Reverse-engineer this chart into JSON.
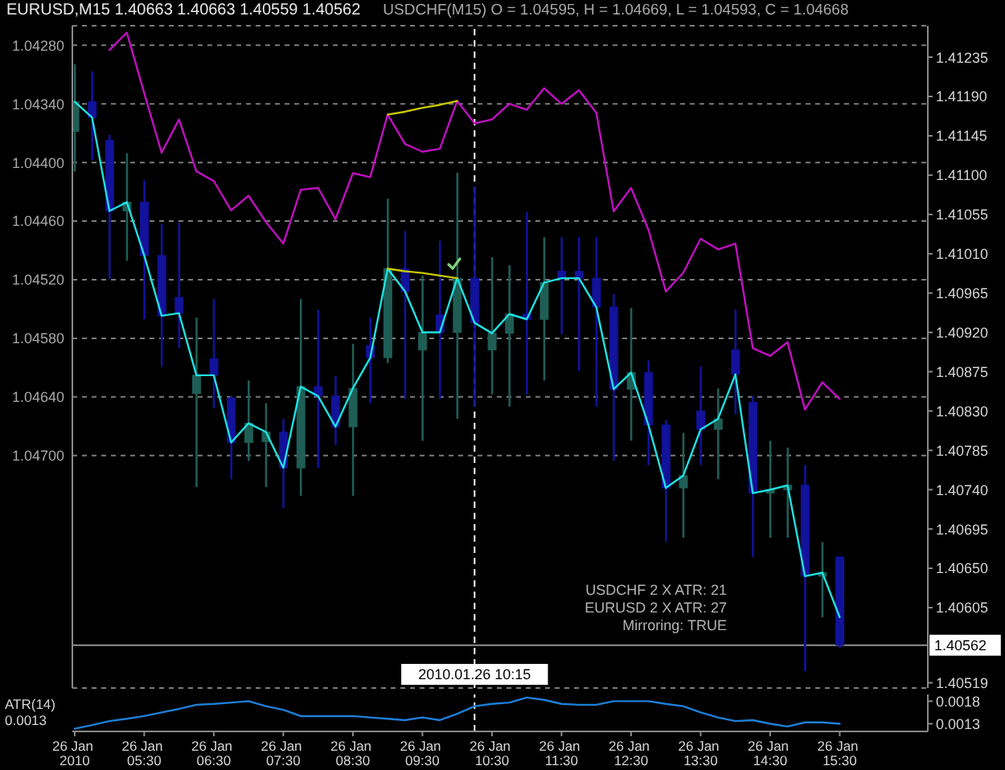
{
  "chart_data": [
    {
      "type": "candlestick",
      "title": "EURUSD,M15 1.40663 1.40663 1.40559 1.40562",
      "subtitle": "USDCHF(M15) O = 1.04595, H = 1.04669, L = 1.04593, C = 1.04668",
      "x": [
        "2010-01-26T04:30",
        "2010-01-26T04:45",
        "2010-01-26T05:00",
        "2010-01-26T05:15",
        "2010-01-26T05:30",
        "2010-01-26T05:45",
        "2010-01-26T06:00",
        "2010-01-26T06:15",
        "2010-01-26T06:30",
        "2010-01-26T06:45",
        "2010-01-26T07:00",
        "2010-01-26T07:15",
        "2010-01-26T07:30",
        "2010-01-26T07:45",
        "2010-01-26T08:00",
        "2010-01-26T08:15",
        "2010-01-26T08:30",
        "2010-01-26T08:45",
        "2010-01-26T09:00",
        "2010-01-26T09:15",
        "2010-01-26T09:30",
        "2010-01-26T09:45",
        "2010-01-26T10:00",
        "2010-01-26T10:15",
        "2010-01-26T10:30",
        "2010-01-26T10:45",
        "2010-01-26T11:00",
        "2010-01-26T11:15",
        "2010-01-26T11:30",
        "2010-01-26T11:45",
        "2010-01-26T12:00",
        "2010-01-26T12:15",
        "2010-01-26T12:30",
        "2010-01-26T12:45",
        "2010-01-26T13:00",
        "2010-01-26T13:15",
        "2010-01-26T13:30",
        "2010-01-26T13:45",
        "2010-01-26T14:00",
        "2010-01-26T14:15",
        "2010-01-26T14:30",
        "2010-01-26T14:45",
        "2010-01-26T15:00",
        "2010-01-26T15:15",
        "2010-01-26T15:30"
      ],
      "series": [
        {
          "type": "line",
          "axis": "y2",
          "color": "#20e0e0",
          "values": [
            1.41184,
            1.41166,
            1.41059,
            1.41069,
            1.41008,
            1.40939,
            1.40942,
            1.40871,
            1.40871,
            1.40794,
            1.40816,
            1.40806,
            1.40765,
            1.40858,
            1.40847,
            1.40812,
            1.40856,
            1.40891,
            1.40993,
            1.40967,
            1.4092,
            1.4092,
            1.40982,
            1.40931,
            1.40919,
            1.40941,
            1.40935,
            1.40977,
            1.40982,
            1.40982,
            1.40949,
            1.40855,
            1.40874,
            1.40814,
            1.40742,
            1.40756,
            1.40809,
            1.40821,
            1.40872,
            1.40736,
            1.4074,
            1.40745,
            1.40641,
            1.40645,
            1.40594
          ]
        },
        {
          "type": "line",
          "color": "#c010c0",
          "values": [
            null,
            null,
            1.04285,
            1.04267,
            1.04329,
            1.0439,
            1.04356,
            1.04409,
            1.04419,
            1.04449,
            1.04434,
            1.04461,
            1.04483,
            1.04428,
            1.04426,
            1.04458,
            1.04411,
            1.04415,
            1.04351,
            1.04381,
            1.04389,
            1.04386,
            1.04337,
            1.0436,
            1.04356,
            1.0434,
            1.04346,
            1.04324,
            1.0434,
            1.04326,
            1.04349,
            1.0445,
            1.04426,
            1.04469,
            1.04532,
            1.04513,
            1.04478,
            1.04489,
            1.04483,
            1.0459,
            1.04598,
            1.04584,
            1.04653,
            1.04625,
            1.04642
          ]
        },
        {
          "type": "line",
          "color": "#c8c800",
          "values": [
            null,
            null,
            null,
            null,
            null,
            null,
            null,
            null,
            null,
            null,
            null,
            null,
            null,
            null,
            null,
            null,
            null,
            null,
            1.04351,
            1.04348,
            1.04344,
            1.04341,
            1.04337,
            null,
            null,
            null,
            null,
            null,
            null,
            null,
            null,
            null,
            null,
            null,
            null,
            null,
            null,
            null,
            null,
            null,
            null,
            null,
            null,
            null,
            null
          ]
        },
        {
          "type": "line",
          "axis": "y2",
          "color": "#c8c800",
          "values": [
            null,
            null,
            null,
            null,
            null,
            null,
            null,
            null,
            null,
            null,
            null,
            null,
            null,
            null,
            null,
            null,
            null,
            null,
            1.40993,
            1.4099,
            1.40988,
            1.40985,
            1.40982,
            null,
            null,
            null,
            null,
            null,
            null,
            null,
            null,
            null,
            null,
            null,
            null,
            null,
            null,
            null,
            null,
            null,
            null,
            null,
            null,
            null,
            null
          ]
        },
        {
          "axis": "y2",
          "ohlc": [
            [
              1.4115,
              1.41227,
              1.41104,
              1.41184
            ],
            [
              1.41184,
              1.41219,
              1.41117,
              1.41166
            ],
            [
              1.4114,
              1.41146,
              1.40981,
              1.41059
            ],
            [
              1.41059,
              1.41125,
              1.41002,
              1.41069
            ],
            [
              1.41069,
              1.41094,
              1.40935,
              1.41008
            ],
            [
              1.41008,
              1.41044,
              1.40881,
              1.40939
            ],
            [
              1.4096,
              1.41046,
              1.40902,
              1.40942
            ],
            [
              1.4085,
              1.40937,
              1.40743,
              1.40871
            ],
            [
              1.4089,
              1.40958,
              1.40833,
              1.40871
            ],
            [
              1.40845,
              1.40847,
              1.40752,
              1.40794
            ],
            [
              1.40794,
              1.40865,
              1.40773,
              1.40816
            ],
            [
              1.40795,
              1.40839,
              1.40743,
              1.40806
            ],
            [
              1.40806,
              1.40821,
              1.40719,
              1.40765
            ],
            [
              1.40765,
              1.40958,
              1.40733,
              1.40858
            ],
            [
              1.40858,
              1.40946,
              1.40765,
              1.40847
            ],
            [
              1.40847,
              1.4087,
              1.40791,
              1.40812
            ],
            [
              1.40812,
              1.40907,
              1.40733,
              1.40856
            ],
            [
              1.40905,
              1.40937,
              1.40839,
              1.40891
            ],
            [
              1.40891,
              1.41073,
              1.40885,
              1.40993
            ],
            [
              1.40993,
              1.41036,
              1.40844,
              1.40967
            ],
            [
              1.409,
              1.40985,
              1.40796,
              1.4092
            ],
            [
              1.4094,
              1.41025,
              1.40844,
              1.4092
            ],
            [
              1.4092,
              1.41103,
              1.40821,
              1.40982
            ],
            [
              1.40982,
              1.41087,
              1.40835,
              1.40931
            ],
            [
              1.409,
              1.41006,
              1.40849,
              1.40919
            ],
            [
              1.40919,
              1.40997,
              1.40835,
              1.40941
            ],
            [
              1.40941,
              1.41058,
              1.40849,
              1.40935
            ],
            [
              1.40935,
              1.41029,
              1.40865,
              1.40977
            ],
            [
              1.4099,
              1.41029,
              1.40918,
              1.40982
            ],
            [
              1.4099,
              1.41029,
              1.40876,
              1.40982
            ],
            [
              1.40982,
              1.41029,
              1.40835,
              1.40949
            ],
            [
              1.40949,
              1.40964,
              1.40773,
              1.40855
            ],
            [
              1.40855,
              1.40948,
              1.40796,
              1.40874
            ],
            [
              1.40874,
              1.40888,
              1.40768,
              1.40814
            ],
            [
              1.40814,
              1.4082,
              1.4068,
              1.40742
            ],
            [
              1.40742,
              1.40805,
              1.40685,
              1.40756
            ],
            [
              1.4083,
              1.40881,
              1.40768,
              1.40809
            ],
            [
              1.40809,
              1.40856,
              1.40752,
              1.40821
            ],
            [
              1.409,
              1.40946,
              1.40826,
              1.40872
            ],
            [
              1.4084,
              1.40847,
              1.40663,
              1.40736
            ],
            [
              1.40736,
              1.40796,
              1.40685,
              1.4074
            ],
            [
              1.4074,
              1.40788,
              1.40685,
              1.40745
            ],
            [
              1.40745,
              1.40768,
              1.40532,
              1.40641
            ],
            [
              1.40641,
              1.4068,
              1.40594,
              1.40645
            ],
            [
              1.40663,
              1.40663,
              1.40559,
              1.40562
            ]
          ],
          "colors": [
            "#1f5e55",
            "#12129a",
            "#12129a",
            "#1f5e55",
            "#12129a",
            "#12129a",
            "#12129a",
            "#1f5e55",
            "#12129a",
            "#12129a",
            "#1f5e55",
            "#1f5e55",
            "#12129a",
            "#1f5e55",
            "#12129a",
            "#12129a",
            "#1f5e55",
            "#12129a",
            "#1f5e55",
            "#12129a",
            "#1f5e55",
            "#12129a",
            "#1f5e55",
            "#12129a",
            "#1f5e55",
            "#1f5e55",
            "#12129a",
            "#1f5e55",
            "#12129a",
            "#12129a",
            "#12129a",
            "#12129a",
            "#1f5e55",
            "#12129a",
            "#12129a",
            "#1f5e55",
            "#12129a",
            "#1f5e55",
            "#12129a",
            "#12129a",
            "#1f5e55",
            "#1f5e55",
            "#12129a",
            "#1f5e55",
            "#12129a"
          ]
        }
      ],
      "xlim": [
        "2010-01-26T04:28",
        "2010-01-26T16:46"
      ],
      "ylim": [
        1.04938,
        1.0426
      ],
      "yticks": [
        {
          "value": 1.0428,
          "label": "1.04280"
        },
        {
          "value": 1.0434,
          "label": "1.04340"
        },
        {
          "value": 1.044,
          "label": "1.04400"
        },
        {
          "value": 1.0446,
          "label": "1.04460"
        },
        {
          "value": 1.0452,
          "label": "1.04520"
        },
        {
          "value": 1.0458,
          "label": "1.04580"
        },
        {
          "value": 1.0464,
          "label": "1.04640"
        },
        {
          "value": 1.047,
          "label": "1.04700"
        }
      ],
      "y2lim": [
        1.40513,
        1.41271
      ],
      "y2ticks": [
        1.41235,
        {
          "value": 1.4119,
          "label": "1.41190"
        },
        1.41145,
        {
          "value": 1.411,
          "label": "1.41100"
        },
        1.41055,
        {
          "value": 1.4101,
          "label": "1.41010"
        },
        1.40965,
        {
          "value": 1.4092,
          "label": "1.40920"
        },
        1.40875,
        {
          "value": 1.4083,
          "label": "1.40830"
        },
        1.40785,
        {
          "value": 1.4074,
          "label": "1.40740"
        },
        1.40695,
        {
          "value": 1.4065,
          "label": "1.40650"
        },
        1.40605,
        1.40519
      ],
      "ref_lines": [
        {
          "axis": "x",
          "value": "2010-01-26T10:15",
          "label": "2010.01.26 10:15",
          "color": "#ffffff",
          "line_style": "dashed"
        },
        {
          "axis": "y2",
          "value": 1.40562,
          "label": "1.40562",
          "color": "#909090"
        }
      ],
      "annotations": [
        "USDCHF 2 X ATR: 21",
        "EURUSD 2 X ATR: 27",
        "Mirroring: TRUE"
      ],
      "grid": "y",
      "tick_labels": "y"
    },
    {
      "type": "line",
      "title": "ATR(14) 0.0013",
      "x": [
        "2010-01-26T04:30",
        "2010-01-26T04:45",
        "2010-01-26T05:00",
        "2010-01-26T05:15",
        "2010-01-26T05:30",
        "2010-01-26T05:45",
        "2010-01-26T06:00",
        "2010-01-26T06:15",
        "2010-01-26T06:30",
        "2010-01-26T06:45",
        "2010-01-26T07:00",
        "2010-01-26T07:15",
        "2010-01-26T07:30",
        "2010-01-26T07:45",
        "2010-01-26T08:00",
        "2010-01-26T08:15",
        "2010-01-26T08:30",
        "2010-01-26T08:45",
        "2010-01-26T09:00",
        "2010-01-26T09:15",
        "2010-01-26T09:30",
        "2010-01-26T09:45",
        "2010-01-26T10:00",
        "2010-01-26T10:15",
        "2010-01-26T10:30",
        "2010-01-26T10:45",
        "2010-01-26T11:00",
        "2010-01-26T11:15",
        "2010-01-26T11:30",
        "2010-01-26T11:45",
        "2010-01-26T12:00",
        "2010-01-26T12:15",
        "2010-01-26T12:30",
        "2010-01-26T12:45",
        "2010-01-26T13:00",
        "2010-01-26T13:15",
        "2010-01-26T13:30",
        "2010-01-26T13:45",
        "2010-01-26T14:00",
        "2010-01-26T14:15",
        "2010-01-26T14:30",
        "2010-01-26T14:45",
        "2010-01-26T15:00",
        "2010-01-26T15:15",
        "2010-01-26T15:30"
      ],
      "series": [
        {
          "color": "#1e7fd8",
          "values": [
            0.00119,
            0.00127,
            0.00136,
            0.00141,
            0.00147,
            0.00155,
            0.00163,
            0.00172,
            0.00174,
            0.00177,
            0.0018,
            0.00169,
            0.00161,
            0.00147,
            0.00147,
            0.00147,
            0.00147,
            0.00144,
            0.00141,
            0.00138,
            0.00144,
            0.00138,
            0.00152,
            0.00169,
            0.00174,
            0.00177,
            0.00188,
            0.00183,
            0.00174,
            0.00172,
            0.00172,
            0.0018,
            0.0018,
            0.0018,
            0.00174,
            0.00169,
            0.00155,
            0.00144,
            0.00136,
            0.00138,
            0.0013,
            0.00124,
            0.00133,
            0.00133,
            0.0013
          ]
        }
      ],
      "xlim": [
        "2010-01-26T04:28",
        "2010-01-26T16:46"
      ],
      "xticks": [
        {
          "value": "2010-01-26T04:30",
          "label": "26 Jan 2010"
        },
        {
          "value": "2010-01-26T05:30",
          "label": "26 Jan 05:30"
        },
        {
          "value": "2010-01-26T06:30",
          "label": "26 Jan 06:30"
        },
        {
          "value": "2010-01-26T07:30",
          "label": "26 Jan 07:30"
        },
        {
          "value": "2010-01-26T08:30",
          "label": "26 Jan 08:30"
        },
        {
          "value": "2010-01-26T09:30",
          "label": "26 Jan 09:30"
        },
        {
          "value": "2010-01-26T10:30",
          "label": "26 Jan 10:30"
        },
        {
          "value": "2010-01-26T11:30",
          "label": "26 Jan 11:30"
        },
        {
          "value": "2010-01-26T12:30",
          "label": "26 Jan 12:30"
        },
        {
          "value": "2010-01-26T13:30",
          "label": "26 Jan 13:30"
        },
        {
          "value": "2010-01-26T14:30",
          "label": "26 Jan 14:30"
        },
        {
          "value": "2010-01-26T15:30",
          "label": "26 Jan 15:30"
        }
      ],
      "ylim": [
        0.00113,
        0.00195
      ],
      "yticks": [
        0.0013,
        0.0018
      ],
      "ref_lines": [
        {
          "axis": "x",
          "value": "2010-01-26T10:15",
          "color": "#ffffff",
          "line_style": "dashed"
        }
      ]
    }
  ]
}
